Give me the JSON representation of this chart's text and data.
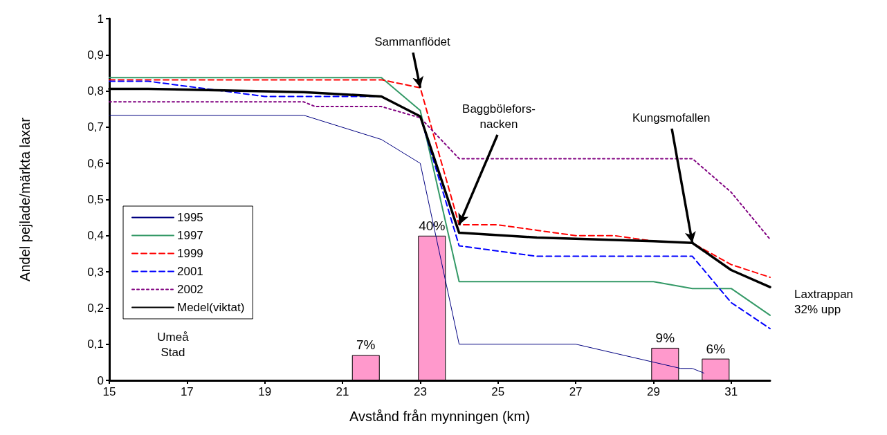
{
  "chart_data": {
    "type": "line",
    "xlabel": "Avstånd från mynningen (km)",
    "ylabel": "Andel pejlade/märkta laxar",
    "xlim": [
      15,
      32
    ],
    "xticks": [
      15,
      17,
      19,
      21,
      23,
      25,
      27,
      29,
      31
    ],
    "ylim": [
      0,
      1
    ],
    "yticks": [
      0,
      {
        "value": 0.1,
        "label": "0,1"
      },
      {
        "value": 0.2,
        "label": "0,2"
      },
      {
        "value": 0.3,
        "label": "0,3"
      },
      {
        "value": 0.4,
        "label": "0,4"
      },
      {
        "value": 0.5,
        "label": "0,5"
      },
      {
        "value": 0.6,
        "label": "0,6"
      },
      {
        "value": 0.7,
        "label": "0,7"
      },
      {
        "value": 0.8,
        "label": "0,8"
      },
      {
        "value": 0.9,
        "label": "0,9"
      },
      1
    ],
    "grid": false,
    "marker": "none",
    "legend": "left",
    "series": [
      {
        "type": "bar",
        "color": "#ff99cc",
        "x": [
          21.6,
          23.3,
          29.3,
          30.6
        ],
        "values": [
          0.07,
          0.4,
          0.09,
          0.06
        ],
        "value_labels": [
          "7%",
          "40%",
          "9%",
          "6%"
        ]
      },
      {
        "name": "1995",
        "color": "#000080",
        "line_style": "solid",
        "x": [
          15,
          20,
          22,
          23,
          24,
          27,
          29.7,
          30,
          30.3
        ],
        "values": [
          0.733,
          0.733,
          0.666,
          0.6,
          0.1,
          0.1,
          0.033,
          0.033,
          0.02
        ]
      },
      {
        "name": "1997",
        "color": "#339966",
        "line_style": "solid",
        "x": [
          15,
          22,
          23,
          24,
          29,
          30,
          31,
          32
        ],
        "values": [
          0.837,
          0.837,
          0.746,
          0.273,
          0.273,
          0.254,
          0.254,
          0.18
        ]
      },
      {
        "name": "1999",
        "color": "#ff0000",
        "line_style": "dashed",
        "x": [
          15,
          22,
          23,
          24,
          25,
          26,
          27,
          28,
          29,
          30,
          31,
          32
        ],
        "values": [
          0.831,
          0.831,
          0.809,
          0.43,
          0.43,
          0.415,
          0.4,
          0.4,
          0.385,
          0.38,
          0.32,
          0.285
        ]
      },
      {
        "name": "2001",
        "color": "#0000ff",
        "line_style": "dashed",
        "x": [
          15,
          16,
          19,
          20,
          22,
          23,
          24,
          26,
          30,
          31,
          32
        ],
        "values": [
          0.827,
          0.827,
          0.785,
          0.785,
          0.785,
          0.73,
          0.372,
          0.343,
          0.343,
          0.215,
          0.143
        ]
      },
      {
        "name": "2002",
        "color": "#800080",
        "line_style": "dotted",
        "x": [
          15,
          20,
          20.3,
          22,
          23,
          24,
          30,
          31,
          32
        ],
        "values": [
          0.77,
          0.77,
          0.757,
          0.757,
          0.726,
          0.613,
          0.613,
          0.52,
          0.39
        ]
      },
      {
        "name": "Medel(viktat)",
        "color": "#000000",
        "line_style": "solid",
        "x": [
          15,
          16,
          20,
          22,
          23,
          24,
          26,
          29,
          30,
          31,
          32
        ],
        "values": [
          0.806,
          0.806,
          0.797,
          0.785,
          0.73,
          0.408,
          0.395,
          0.385,
          0.38,
          0.305,
          0.258
        ]
      }
    ],
    "annotations": [
      {
        "text": "Sammanflödet",
        "x": 23,
        "y": 0.809
      },
      {
        "text": "Baggbölefors-\nnacken",
        "x": 24,
        "y": 0.43
      },
      {
        "text": "Kungsmofallen",
        "x": 30,
        "y": 0.38
      },
      "Laxtrappan\n32% upp",
      "Umeå\nStad"
    ]
  }
}
